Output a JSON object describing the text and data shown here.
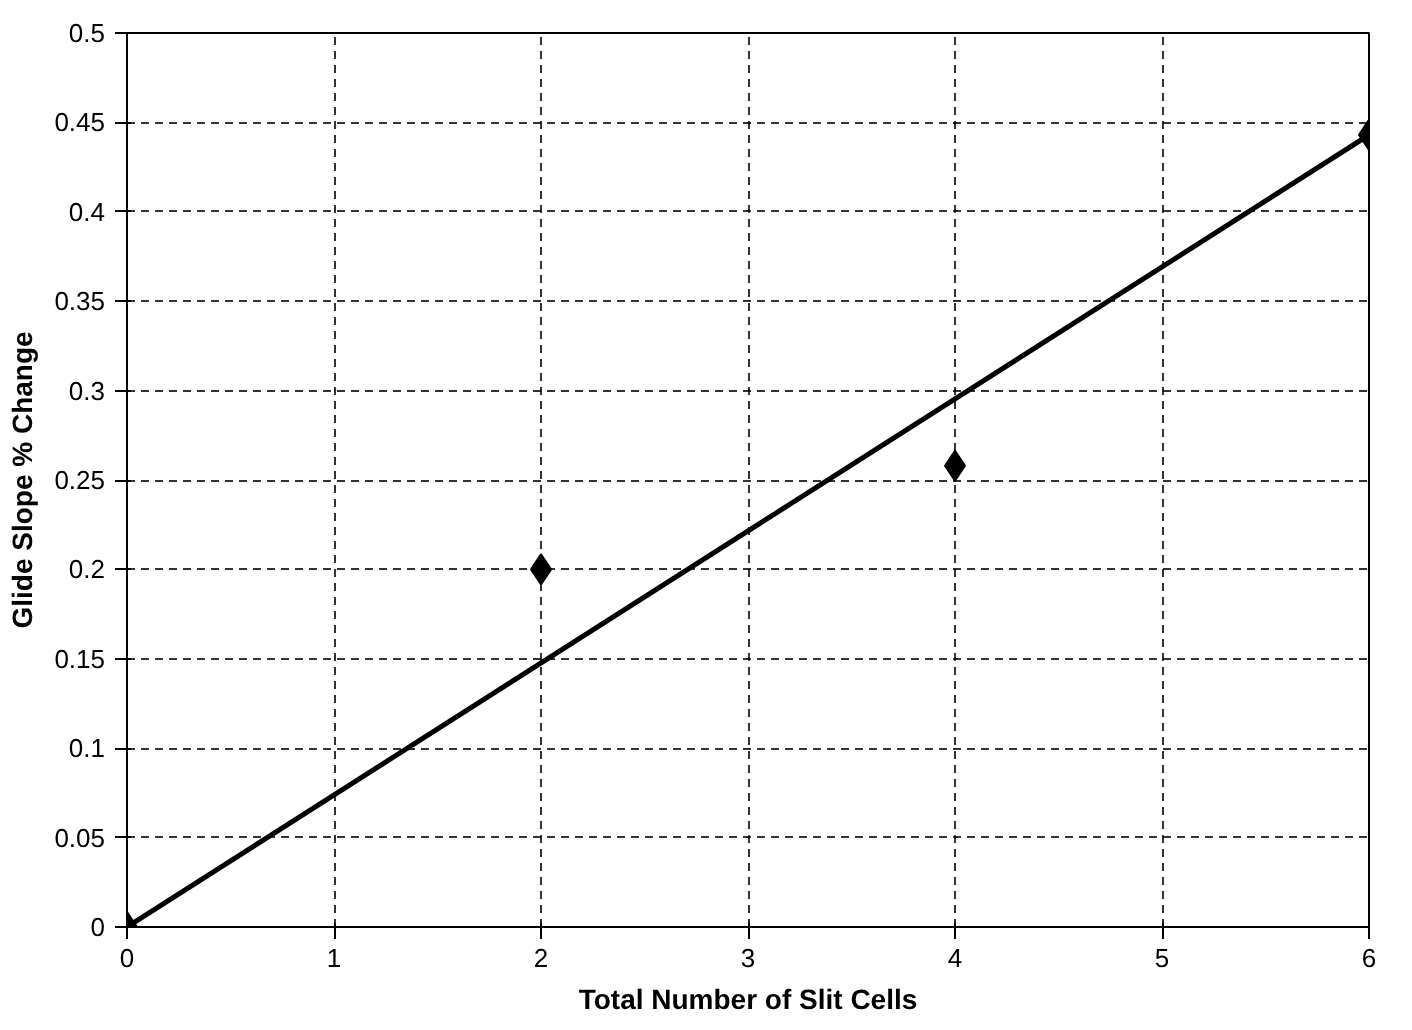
{
  "chart_data": {
    "type": "scatter",
    "xlabel": "Total Number of Slit Cells",
    "ylabel": "Glide Slope % Change",
    "series": [
      {
        "x": [
          0,
          2,
          4,
          6
        ],
        "values": [
          0,
          0.2,
          0.258,
          0.443
        ],
        "color": "#000000",
        "marker": "diamond"
      },
      {
        "type": "line",
        "x": [
          0,
          6
        ],
        "values": [
          0,
          0.443
        ],
        "color": "#000000"
      }
    ],
    "xlim": [
      0,
      6
    ],
    "ylim": [
      0,
      0.5
    ],
    "xticks": [
      0,
      1,
      2,
      3,
      4,
      5,
      6
    ],
    "yticks": [
      0,
      0.05,
      0.1,
      0.15,
      0.2,
      0.25,
      0.3,
      0.35,
      0.4,
      0.45,
      0.5
    ],
    "grid": true
  }
}
